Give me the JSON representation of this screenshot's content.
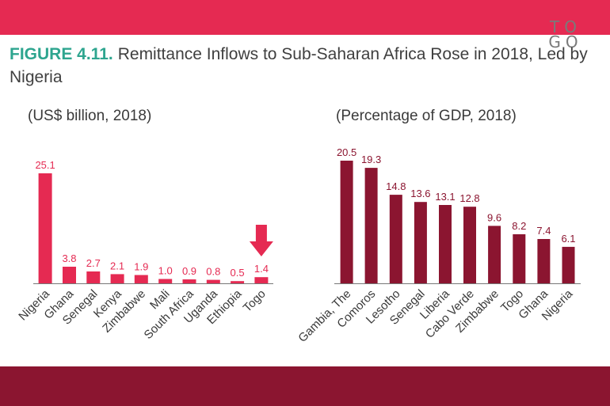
{
  "figure": {
    "number": "FIGURE 4.11.",
    "title": "Remittance Inflows to Sub-Saharan Africa Rose in 2018, Led by Nigeria"
  },
  "logo": {
    "line1": "TO",
    "line2": "GO"
  },
  "colors": {
    "top_band": "#e52a52",
    "bottom_band": "#8b1530",
    "left_bars": "#e52a52",
    "right_bars": "#8b1530",
    "figure_label": "#2ea58f",
    "arrow": "#e52a52"
  },
  "chart_data": [
    {
      "type": "bar",
      "title": "(US$ billion, 2018)",
      "categories": [
        "Nigeria",
        "Ghana",
        "Senegal",
        "Kenya",
        "Zimbabwe",
        "Mali",
        "South Africa",
        "Uganda",
        "Ethiopia",
        "Togo"
      ],
      "values": [
        25.1,
        3.8,
        2.7,
        2.1,
        1.9,
        1.0,
        0.9,
        0.8,
        0.5,
        1.4
      ],
      "value_labels": [
        "25.1",
        "3.8",
        "2.7",
        "2.1",
        "1.9",
        "1.0",
        "0.9",
        "0.8",
        "0.5",
        "1.4"
      ],
      "ylim": [
        0,
        30
      ],
      "xlabel": "",
      "ylabel": "",
      "highlight": "Togo",
      "annotation": "down-arrow-over-Togo"
    },
    {
      "type": "bar",
      "title": "(Percentage of GDP, 2018)",
      "categories": [
        "Gambia, The",
        "Comoros",
        "Lesotho",
        "Senegal",
        "Liberia",
        "Cabo Verde",
        "Zimbabwe",
        "Togo",
        "Ghana",
        "Nigeria"
      ],
      "values": [
        20.5,
        19.3,
        14.8,
        13.6,
        13.1,
        12.8,
        9.6,
        8.2,
        7.4,
        6.1
      ],
      "value_labels": [
        "20.5",
        "19.3",
        "14.8",
        "13.6",
        "13.1",
        "12.8",
        "9.6",
        "8.2",
        "7.4",
        "6.1"
      ],
      "ylim": [
        0,
        25
      ],
      "xlabel": "",
      "ylabel": ""
    }
  ]
}
